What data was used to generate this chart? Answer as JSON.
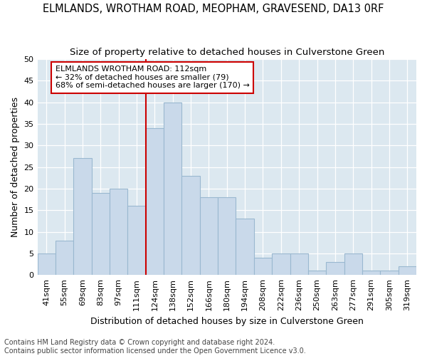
{
  "title": "ELMLANDS, WROTHAM ROAD, MEOPHAM, GRAVESEND, DA13 0RF",
  "subtitle": "Size of property relative to detached houses in Culverstone Green",
  "xlabel": "Distribution of detached houses by size in Culverstone Green",
  "ylabel": "Number of detached properties",
  "footnote1": "Contains HM Land Registry data © Crown copyright and database right 2024.",
  "footnote2": "Contains public sector information licensed under the Open Government Licence v3.0.",
  "categories": [
    "41sqm",
    "55sqm",
    "69sqm",
    "83sqm",
    "97sqm",
    "111sqm",
    "124sqm",
    "138sqm",
    "152sqm",
    "166sqm",
    "180sqm",
    "194sqm",
    "208sqm",
    "222sqm",
    "236sqm",
    "250sqm",
    "263sqm",
    "277sqm",
    "291sqm",
    "305sqm",
    "319sqm"
  ],
  "values": [
    5,
    8,
    27,
    19,
    20,
    16,
    34,
    40,
    23,
    18,
    18,
    13,
    4,
    5,
    5,
    1,
    3,
    5,
    1,
    1,
    2
  ],
  "bar_color": "#c9d9ea",
  "bar_edge_color": "#9ab8d0",
  "vline_color": "#cc0000",
  "annotation_line1": "ELMLANDS WROTHAM ROAD: 112sqm",
  "annotation_line2": "← 32% of detached houses are smaller (79)",
  "annotation_line3": "68% of semi-detached houses are larger (170) →",
  "ylim": [
    0,
    50
  ],
  "yticks": [
    0,
    5,
    10,
    15,
    20,
    25,
    30,
    35,
    40,
    45,
    50
  ],
  "fig_bg_color": "#ffffff",
  "plot_bg_color": "#dce8f0",
  "title_fontsize": 10.5,
  "subtitle_fontsize": 9.5,
  "annotation_fontsize": 8,
  "axis_label_fontsize": 9,
  "tick_fontsize": 8,
  "footnote_fontsize": 7
}
